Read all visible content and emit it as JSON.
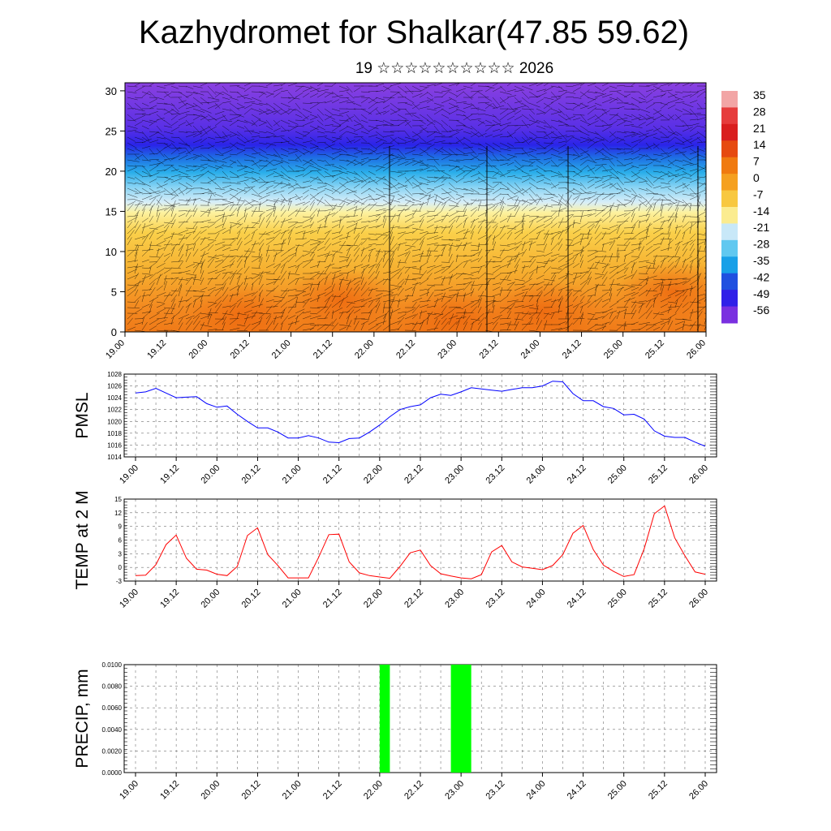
{
  "title": "Kazhydromet for Shalkar(47.85 59.62)",
  "subtitle": "19 ☆☆☆☆☆☆☆☆☆☆ 2026",
  "time_ticks": [
    "19.00",
    "19.12",
    "20.00",
    "20.12",
    "21.00",
    "21.12",
    "22.00",
    "22.12",
    "23.00",
    "23.12",
    "24.00",
    "24.12",
    "25.00",
    "25.12",
    "26.00"
  ],
  "chart_data": [
    {
      "type": "heatmap",
      "name": "cross-section",
      "x_ticks": [
        "19.00",
        "19.12",
        "20.00",
        "20.12",
        "21.00",
        "21.12",
        "22.00",
        "22.12",
        "23.00",
        "23.12",
        "24.00",
        "24.12",
        "25.00",
        "25.12",
        "26.00"
      ],
      "y_ticks": [
        "0",
        "5",
        "10",
        "15",
        "20",
        "25",
        "30"
      ],
      "ylim": [
        0,
        31
      ],
      "colorbar_labels": [
        "35",
        "28",
        "21",
        "14",
        "7",
        "0",
        "-7",
        "-14",
        "-21",
        "-28",
        "-35",
        "-42",
        "-49",
        "-56"
      ],
      "colorbar_colors": [
        "#f2a5a5",
        "#e63c3c",
        "#d91e1e",
        "#e64a10",
        "#f07a10",
        "#f5a020",
        "#f8c840",
        "#fbec90",
        "#c8e8f8",
        "#60c8f0",
        "#18a0e8",
        "#2050e0",
        "#3020e8",
        "#7a30e0"
      ]
    },
    {
      "type": "line",
      "ylabel": "PMSL",
      "ylim": [
        1014,
        1028
      ],
      "y_ticks": [
        "1014",
        "1016",
        "1018",
        "1020",
        "1022",
        "1024",
        "1026",
        "1028"
      ],
      "color": "#0000ff",
      "x": [
        0,
        3,
        6,
        9,
        12,
        15,
        18,
        21,
        24,
        27,
        30,
        33,
        36,
        39,
        42,
        45,
        48,
        51,
        54,
        57,
        60,
        63,
        66,
        69,
        72,
        75,
        78,
        81,
        84,
        87,
        90,
        93,
        96,
        99,
        102,
        105,
        108,
        111,
        114,
        117,
        120,
        123,
        126,
        129,
        132,
        135,
        138,
        141,
        144,
        147,
        150,
        153,
        156,
        159,
        162,
        165,
        168
      ],
      "values": [
        1024.8,
        1025.0,
        1025.6,
        1024.8,
        1024.0,
        1024.1,
        1024.2,
        1023.0,
        1022.4,
        1022.6,
        1021.2,
        1020.0,
        1018.9,
        1018.9,
        1018.2,
        1017.2,
        1017.2,
        1017.6,
        1017.2,
        1016.5,
        1016.4,
        1017.1,
        1017.2,
        1018.2,
        1019.4,
        1020.8,
        1022.0,
        1022.5,
        1022.8,
        1024.0,
        1024.6,
        1024.4,
        1025.0,
        1025.7,
        1025.5,
        1025.3,
        1025.1,
        1025.4,
        1025.7,
        1025.7,
        1026.0,
        1026.8,
        1026.7,
        1024.7,
        1023.5,
        1023.5,
        1022.5,
        1022.2,
        1021.1,
        1021.2,
        1020.4,
        1018.4,
        1017.5,
        1017.3,
        1017.3,
        1016.5,
        1015.8
      ]
    },
    {
      "type": "line",
      "ylabel": "TEMP at 2 M",
      "ylim": [
        -3,
        15
      ],
      "y_ticks": [
        "-3",
        "0",
        "3",
        "6",
        "9",
        "12",
        "15"
      ],
      "color": "#ff0000",
      "x": [
        0,
        3,
        6,
        9,
        12,
        15,
        18,
        21,
        24,
        27,
        30,
        33,
        36,
        39,
        42,
        45,
        48,
        51,
        54,
        57,
        60,
        63,
        66,
        69,
        72,
        75,
        78,
        81,
        84,
        87,
        90,
        93,
        96,
        99,
        102,
        105,
        108,
        111,
        114,
        117,
        120,
        123,
        126,
        129,
        132,
        135,
        138,
        141,
        144,
        147,
        150,
        153,
        156,
        159,
        162,
        165,
        168
      ],
      "values": [
        -1.8,
        -1.7,
        0.6,
        5.0,
        7.1,
        2.0,
        -0.4,
        -0.6,
        -1.5,
        -1.8,
        0.2,
        7.0,
        8.7,
        2.8,
        0.4,
        -2.3,
        -2.3,
        -2.3,
        2.2,
        7.2,
        7.3,
        1.2,
        -1.2,
        -1.8,
        -2.1,
        -2.4,
        0.2,
        3.2,
        3.8,
        0.4,
        -1.4,
        -1.9,
        -2.3,
        -2.5,
        -1.6,
        3.4,
        4.8,
        1.2,
        0.1,
        -0.2,
        -0.5,
        0.4,
        2.8,
        7.5,
        9.2,
        3.9,
        0.5,
        -0.9,
        -2.0,
        -1.6,
        4.1,
        11.8,
        13.5,
        6.5,
        2.6,
        -1.0,
        -1.5
      ]
    },
    {
      "type": "bar",
      "ylabel": "PRECIP, mm",
      "ylim": [
        0,
        0.01
      ],
      "y_ticks": [
        "0.0000",
        "0.0020",
        "0.0040",
        "0.0060",
        "0.0080",
        "0.0100"
      ],
      "color": "#00ff00",
      "bars": [
        {
          "x_start": 72,
          "x_end": 75,
          "value": 0.01
        },
        {
          "x_start": 93,
          "x_end": 99,
          "value": 0.01
        }
      ]
    }
  ]
}
